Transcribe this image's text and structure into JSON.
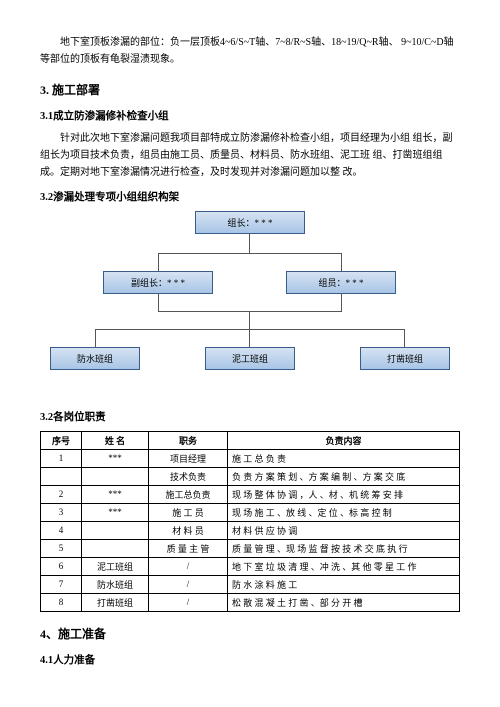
{
  "intro": {
    "para1": "地下室顶板渗漏的部位：负一层顶板4~6/S~T轴、7~8/R~S轴、18~19/Q~R轴、 9~10/C~D轴等部位的顶板有龟裂湿渍现象。"
  },
  "sec3": {
    "title": "3. 施工部署",
    "s31_title": "3.1成立防渗漏修补检查小组",
    "s31_body": "针对此次地下室渗漏问题我项目部特成立防渗漏修补检查小组，项目经理为小组 组长，副组长为项目技术负责，组员由施工员、质量员、材料员、防水班组、泥工班 组、打凿班组组成。定期对地下室渗漏情况进行检查，及时发现并对渗漏问题加以整 改。",
    "s32_title": "3.2渗漏处理专项小组组织构架"
  },
  "org": {
    "leader": "组长：* * *",
    "vice": "副组长：* * *",
    "member": "组员：* * *",
    "n1": "防水班组",
    "n2": "泥工班组",
    "n3": "打凿班组",
    "node_border": "#385d8a",
    "node_fill_top": "#d6e3f2",
    "node_fill_bot": "#a8c5e6"
  },
  "table": {
    "title": "3.2各岗位职责",
    "headers": [
      "序号",
      "姓 名",
      "职务",
      "负责内容"
    ],
    "rows": [
      [
        "1",
        "***",
        "项目经理",
        "施 工 总 负 责"
      ],
      [
        "",
        "",
        "技术负责",
        "负 责 方 案 策 划 、方 案 编 制 、方 案 交 底"
      ],
      [
        "2",
        "***",
        "施工总负责",
        "现 场 整 体 协 调 ，人 、材 、机 统 筹 安 排"
      ],
      [
        "3",
        "***",
        "施 工 员",
        "现 场 施 工 、放 线 、定 位 、标 高 控 制"
      ],
      [
        "4",
        "",
        "材 料 员",
        "材 料 供 应 协 调"
      ],
      [
        "5",
        "",
        "质 量 主 管",
        "质 量 管 理 、现 场 监 督 按 技 术 交 底 执 行"
      ],
      [
        "6",
        "泥工班组",
        "/",
        "地 下 室 垃 圾 清 理 、冲 洗 、其 他 零 星 工 作"
      ],
      [
        "7",
        "防水班组",
        "/",
        "防 水 涂 料 施 工"
      ],
      [
        "8",
        "打凿班组",
        "/",
        "松 散 混 凝 土 打 凿 、部 分 开 槽"
      ]
    ]
  },
  "sec4": {
    "title": "4、施工准备",
    "s41_title": "4.1人力准备"
  }
}
